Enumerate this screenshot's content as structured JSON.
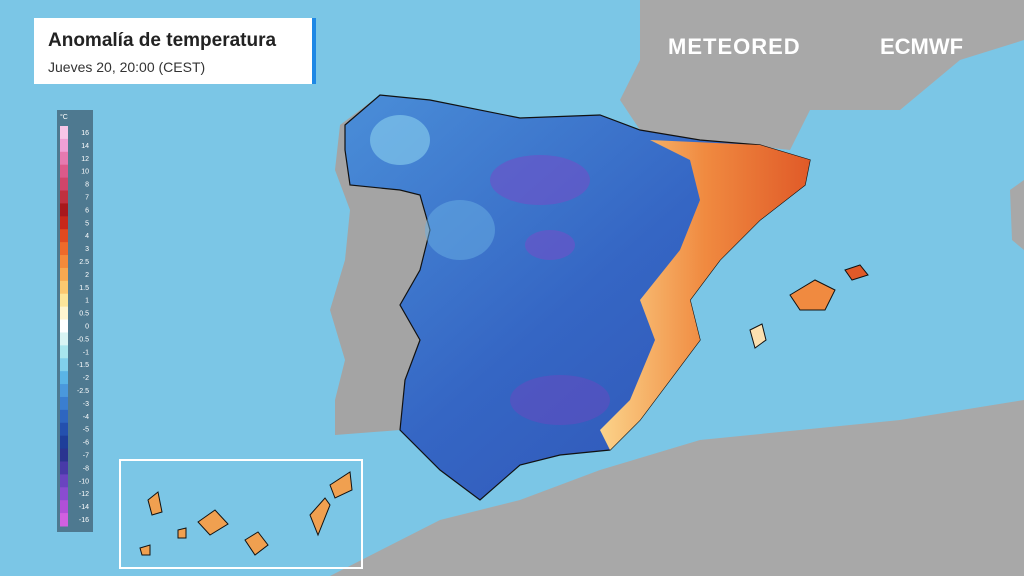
{
  "header": {
    "title": "Anomalía de temperatura",
    "subtitle": "Jueves 20, 20:00 (CEST)"
  },
  "logos": [
    "METEORED",
    "ECMWF"
  ],
  "legend": {
    "unit": "°C",
    "items": [
      {
        "label": "16",
        "color": "#f7c6e8"
      },
      {
        "label": "14",
        "color": "#f0a0d6"
      },
      {
        "label": "12",
        "color": "#e67ab0"
      },
      {
        "label": "10",
        "color": "#dc5a8a"
      },
      {
        "label": "8",
        "color": "#d0456a"
      },
      {
        "label": "7",
        "color": "#c0303f"
      },
      {
        "label": "6",
        "color": "#a8181c"
      },
      {
        "label": "5",
        "color": "#c8281a"
      },
      {
        "label": "4",
        "color": "#e04a20"
      },
      {
        "label": "3",
        "color": "#ee6a2a"
      },
      {
        "label": "2.5",
        "color": "#f58a3a"
      },
      {
        "label": "2",
        "color": "#f8a850"
      },
      {
        "label": "1.5",
        "color": "#fbc870"
      },
      {
        "label": "1",
        "color": "#fde69a"
      },
      {
        "label": "0.5",
        "color": "#fff6d0"
      },
      {
        "label": "0",
        "color": "#ffffff"
      },
      {
        "label": "-0.5",
        "color": "#d8f4f4"
      },
      {
        "label": "-1",
        "color": "#a8e6ee"
      },
      {
        "label": "-1.5",
        "color": "#80d0ec"
      },
      {
        "label": "-2",
        "color": "#5ab4e6"
      },
      {
        "label": "-2.5",
        "color": "#4a98dc"
      },
      {
        "label": "-3",
        "color": "#3a7ed0"
      },
      {
        "label": "-4",
        "color": "#2e66c0"
      },
      {
        "label": "-5",
        "color": "#2450ae"
      },
      {
        "label": "-6",
        "color": "#1e3e9a"
      },
      {
        "label": "-7",
        "color": "#2a3490"
      },
      {
        "label": "-8",
        "color": "#483aa8"
      },
      {
        "label": "-10",
        "color": "#6a44c0"
      },
      {
        "label": "-12",
        "color": "#8a4cd0"
      },
      {
        "label": "-14",
        "color": "#b050d8"
      },
      {
        "label": "-16",
        "color": "#d060e0"
      }
    ]
  }
}
